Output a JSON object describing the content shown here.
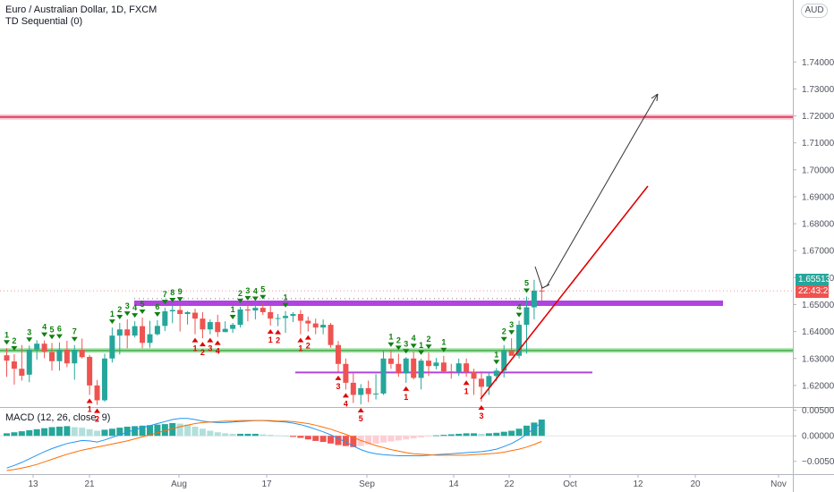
{
  "header": {
    "symbol_line": "Euro / Australian Dollar, 1D, FXCM",
    "indicator_line": "TD Sequential (0)",
    "currency_button": "AUD"
  },
  "macd": {
    "label": "MACD (12, 26, close, 9)"
  },
  "price_badges": {
    "last_price": "1.65513",
    "countdown": "22:43:26"
  },
  "colors": {
    "up": "#26a69a",
    "down": "#ef5350",
    "resistance_line": "#e04060",
    "support_band": "#4caf50",
    "purple_band": "#b044e0",
    "trend_line": "#e00000",
    "arrow_line": "#333333",
    "td_buy": "#e00000",
    "td_sell": "#108010"
  },
  "chart_data": [
    {
      "type": "candlestick",
      "title": "Euro / Australian Dollar, 1D, FXCM",
      "ylim": [
        1.612,
        1.763
      ],
      "y_ticks": [
        1.62,
        1.63,
        1.64,
        1.65,
        1.66,
        1.67,
        1.68,
        1.69,
        1.7,
        1.71,
        1.72,
        1.73,
        1.74
      ],
      "x_ticks": [
        "13",
        "21",
        "Aug",
        "17",
        "Sep",
        "14",
        "22",
        "Oct",
        "12",
        "20",
        "Nov"
      ],
      "candles": [
        {
          "o": 1.6312,
          "h": 1.6338,
          "l": 1.6232,
          "c": 1.6292
        },
        {
          "o": 1.6289,
          "h": 1.6316,
          "l": 1.6203,
          "c": 1.6262
        },
        {
          "o": 1.6262,
          "h": 1.635,
          "l": 1.6218,
          "c": 1.6236
        },
        {
          "o": 1.624,
          "h": 1.6348,
          "l": 1.6212,
          "c": 1.6333
        },
        {
          "o": 1.6333,
          "h": 1.6368,
          "l": 1.6296,
          "c": 1.6355
        },
        {
          "o": 1.6355,
          "h": 1.6367,
          "l": 1.6301,
          "c": 1.6325
        },
        {
          "o": 1.6324,
          "h": 1.6358,
          "l": 1.6255,
          "c": 1.629
        },
        {
          "o": 1.629,
          "h": 1.636,
          "l": 1.6255,
          "c": 1.6333
        },
        {
          "o": 1.6333,
          "h": 1.6366,
          "l": 1.6268,
          "c": 1.6282
        },
        {
          "o": 1.6282,
          "h": 1.635,
          "l": 1.6221,
          "c": 1.6332
        },
        {
          "o": 1.6332,
          "h": 1.6374,
          "l": 1.63,
          "c": 1.6305
        },
        {
          "o": 1.6306,
          "h": 1.6313,
          "l": 1.6165,
          "c": 1.62
        },
        {
          "o": 1.62,
          "h": 1.622,
          "l": 1.6128,
          "c": 1.6145
        },
        {
          "o": 1.6145,
          "h": 1.6318,
          "l": 1.614,
          "c": 1.63
        },
        {
          "o": 1.63,
          "h": 1.6415,
          "l": 1.6285,
          "c": 1.6385
        },
        {
          "o": 1.6385,
          "h": 1.6432,
          "l": 1.6315,
          "c": 1.6408
        },
        {
          "o": 1.6408,
          "h": 1.6445,
          "l": 1.6338,
          "c": 1.6385
        },
        {
          "o": 1.6385,
          "h": 1.6438,
          "l": 1.6378,
          "c": 1.642
        },
        {
          "o": 1.642,
          "h": 1.6452,
          "l": 1.6338,
          "c": 1.6358
        },
        {
          "o": 1.6358,
          "h": 1.644,
          "l": 1.634,
          "c": 1.639
        },
        {
          "o": 1.639,
          "h": 1.6442,
          "l": 1.6385,
          "c": 1.6421
        },
        {
          "o": 1.6421,
          "h": 1.6488,
          "l": 1.6402,
          "c": 1.6475
        },
        {
          "o": 1.6475,
          "h": 1.6495,
          "l": 1.6431,
          "c": 1.648
        },
        {
          "o": 1.648,
          "h": 1.6498,
          "l": 1.64,
          "c": 1.6465
        },
        {
          "o": 1.6465,
          "h": 1.6476,
          "l": 1.6426,
          "c": 1.6472
        },
        {
          "o": 1.647,
          "h": 1.6485,
          "l": 1.639,
          "c": 1.6448
        },
        {
          "o": 1.6448,
          "h": 1.6472,
          "l": 1.6375,
          "c": 1.6408
        },
        {
          "o": 1.6408,
          "h": 1.6445,
          "l": 1.639,
          "c": 1.6435
        },
        {
          "o": 1.6435,
          "h": 1.6462,
          "l": 1.638,
          "c": 1.6398
        },
        {
          "o": 1.6398,
          "h": 1.6438,
          "l": 1.6398,
          "c": 1.641
        },
        {
          "o": 1.641,
          "h": 1.6432,
          "l": 1.6395,
          "c": 1.6425
        },
        {
          "o": 1.6425,
          "h": 1.6492,
          "l": 1.6415,
          "c": 1.6482
        },
        {
          "o": 1.6482,
          "h": 1.6502,
          "l": 1.6438,
          "c": 1.6478
        },
        {
          "o": 1.6478,
          "h": 1.65,
          "l": 1.6445,
          "c": 1.6488
        },
        {
          "o": 1.6488,
          "h": 1.6506,
          "l": 1.6462,
          "c": 1.6472
        },
        {
          "o": 1.6472,
          "h": 1.6495,
          "l": 1.6422,
          "c": 1.6448
        },
        {
          "o": 1.6448,
          "h": 1.6465,
          "l": 1.642,
          "c": 1.645
        },
        {
          "o": 1.645,
          "h": 1.6476,
          "l": 1.6395,
          "c": 1.6458
        },
        {
          "o": 1.6458,
          "h": 1.6472,
          "l": 1.6435,
          "c": 1.6465
        },
        {
          "o": 1.6465,
          "h": 1.648,
          "l": 1.639,
          "c": 1.644
        },
        {
          "o": 1.644,
          "h": 1.6455,
          "l": 1.64,
          "c": 1.643
        },
        {
          "o": 1.643,
          "h": 1.6448,
          "l": 1.639,
          "c": 1.6415
        },
        {
          "o": 1.6415,
          "h": 1.6445,
          "l": 1.639,
          "c": 1.6425
        },
        {
          "o": 1.6425,
          "h": 1.6432,
          "l": 1.634,
          "c": 1.635
        },
        {
          "o": 1.635,
          "h": 1.6365,
          "l": 1.625,
          "c": 1.628
        },
        {
          "o": 1.628,
          "h": 1.63,
          "l": 1.6185,
          "c": 1.621
        },
        {
          "o": 1.621,
          "h": 1.6245,
          "l": 1.6135,
          "c": 1.6165
        },
        {
          "o": 1.6165,
          "h": 1.6205,
          "l": 1.613,
          "c": 1.619
        },
        {
          "o": 1.619,
          "h": 1.6218,
          "l": 1.6138,
          "c": 1.6168
        },
        {
          "o": 1.6168,
          "h": 1.6242,
          "l": 1.6148,
          "c": 1.617
        },
        {
          "o": 1.617,
          "h": 1.6328,
          "l": 1.6165,
          "c": 1.63
        },
        {
          "o": 1.63,
          "h": 1.633,
          "l": 1.6262,
          "c": 1.628
        },
        {
          "o": 1.628,
          "h": 1.6318,
          "l": 1.6232,
          "c": 1.6245
        },
        {
          "o": 1.6245,
          "h": 1.6305,
          "l": 1.621,
          "c": 1.63
        },
        {
          "o": 1.63,
          "h": 1.6325,
          "l": 1.6222,
          "c": 1.6228
        },
        {
          "o": 1.6228,
          "h": 1.63,
          "l": 1.6185,
          "c": 1.6292
        },
        {
          "o": 1.6292,
          "h": 1.6322,
          "l": 1.6235,
          "c": 1.6272
        },
        {
          "o": 1.6272,
          "h": 1.6302,
          "l": 1.626,
          "c": 1.6285
        },
        {
          "o": 1.6285,
          "h": 1.631,
          "l": 1.6245,
          "c": 1.6252
        },
        {
          "o": 1.6252,
          "h": 1.628,
          "l": 1.6225,
          "c": 1.625
        },
        {
          "o": 1.625,
          "h": 1.63,
          "l": 1.6235,
          "c": 1.6282
        },
        {
          "o": 1.6282,
          "h": 1.63,
          "l": 1.6232,
          "c": 1.625
        },
        {
          "o": 1.625,
          "h": 1.6262,
          "l": 1.6165,
          "c": 1.6225
        },
        {
          "o": 1.6225,
          "h": 1.6252,
          "l": 1.614,
          "c": 1.6195
        },
        {
          "o": 1.6195,
          "h": 1.6248,
          "l": 1.6165,
          "c": 1.6235
        },
        {
          "o": 1.6235,
          "h": 1.6265,
          "l": 1.6215,
          "c": 1.6255
        },
        {
          "o": 1.6255,
          "h": 1.635,
          "l": 1.623,
          "c": 1.633
        },
        {
          "o": 1.633,
          "h": 1.6375,
          "l": 1.6312,
          "c": 1.631
        },
        {
          "o": 1.631,
          "h": 1.644,
          "l": 1.63,
          "c": 1.6425
        },
        {
          "o": 1.6425,
          "h": 1.653,
          "l": 1.6318,
          "c": 1.649
        },
        {
          "o": 1.649,
          "h": 1.6592,
          "l": 1.6445,
          "c": 1.6552
        },
        {
          "o": 1.6552,
          "h": 1.657,
          "l": 1.6515,
          "c": 1.6551
        }
      ],
      "levels": [
        {
          "name": "resistance",
          "y": 1.7196
        },
        {
          "name": "support-band",
          "y": 1.633
        },
        {
          "name": "purple-band-upper",
          "y": 1.6505
        },
        {
          "name": "purple-band-lower",
          "y": 1.6248
        },
        {
          "name": "dotted-line",
          "y": 1.6522
        }
      ],
      "td_sequential": {
        "sell_counts": [
          {
            "bar": 0,
            "label": "1"
          },
          {
            "bar": 1,
            "label": "2"
          },
          {
            "bar": 3,
            "label": "3"
          },
          {
            "bar": 5,
            "label": "4"
          },
          {
            "bar": 6,
            "label": "5"
          },
          {
            "bar": 7,
            "label": "6"
          },
          {
            "bar": 9,
            "label": "7"
          },
          {
            "bar": 14,
            "label": "1"
          },
          {
            "bar": 15,
            "label": "2"
          },
          {
            "bar": 16,
            "label": "3"
          },
          {
            "bar": 17,
            "label": "4"
          },
          {
            "bar": 18,
            "label": "5"
          },
          {
            "bar": 20,
            "label": "6"
          },
          {
            "bar": 21,
            "label": "7"
          },
          {
            "bar": 22,
            "label": "8"
          },
          {
            "bar": 23,
            "label": "9"
          },
          {
            "bar": 30,
            "label": "1"
          },
          {
            "bar": 31,
            "label": "2"
          },
          {
            "bar": 32,
            "label": "3"
          },
          {
            "bar": 33,
            "label": "4"
          },
          {
            "bar": 34,
            "label": "5"
          },
          {
            "bar": 37,
            "label": "1"
          },
          {
            "bar": 51,
            "label": "1"
          },
          {
            "bar": 52,
            "label": "2"
          },
          {
            "bar": 53,
            "label": "3"
          },
          {
            "bar": 54,
            "label": "4"
          },
          {
            "bar": 55,
            "label": "1"
          },
          {
            "bar": 56,
            "label": "2"
          },
          {
            "bar": 58,
            "label": "1"
          },
          {
            "bar": 65,
            "label": "1"
          },
          {
            "bar": 66,
            "label": "2"
          },
          {
            "bar": 67,
            "label": "3"
          },
          {
            "bar": 68,
            "label": "4"
          },
          {
            "bar": 69,
            "label": "5"
          }
        ],
        "buy_counts": [
          {
            "bar": 11,
            "label": "1"
          },
          {
            "bar": 12,
            "label": "2"
          },
          {
            "bar": 25,
            "label": "1"
          },
          {
            "bar": 26,
            "label": "2"
          },
          {
            "bar": 27,
            "label": "3"
          },
          {
            "bar": 28,
            "label": "4"
          },
          {
            "bar": 35,
            "label": "1"
          },
          {
            "bar": 36,
            "label": "2"
          },
          {
            "bar": 39,
            "label": "1"
          },
          {
            "bar": 40,
            "label": "2"
          },
          {
            "bar": 44,
            "label": "3"
          },
          {
            "bar": 45,
            "label": "4"
          },
          {
            "bar": 47,
            "label": "5"
          },
          {
            "bar": 53,
            "label": "1"
          },
          {
            "bar": 61,
            "label": "1"
          },
          {
            "bar": 63,
            "label": "3"
          }
        ]
      }
    },
    {
      "type": "bar",
      "title": "MACD (12, 26, close, 9)",
      "ylim": [
        -0.0075,
        0.0053
      ],
      "y_ticks": [
        0.005,
        0.0,
        -0.005
      ],
      "histogram": [
        0.0005,
        0.0007,
        0.0009,
        0.0011,
        0.0013,
        0.0015,
        0.0017,
        0.0018,
        0.0019,
        0.0017,
        0.0016,
        0.0013,
        0.001,
        0.0012,
        0.0014,
        0.0016,
        0.0018,
        0.0019,
        0.002,
        0.0021,
        0.0022,
        0.0023,
        0.0025,
        0.0024,
        0.0022,
        0.0018,
        0.0014,
        0.001,
        0.0007,
        0.0005,
        0.0004,
        0.0004,
        0.0004,
        0.0004,
        0.0003,
        0.0002,
        0.0001,
        0.0,
        -0.0002,
        -0.0004,
        -0.0007,
        -0.001,
        -0.0012,
        -0.0015,
        -0.0018,
        -0.002,
        -0.0022,
        -0.002,
        -0.0017,
        -0.0015,
        -0.0013,
        -0.0011,
        -0.0009,
        -0.0007,
        -0.0005,
        -0.0003,
        -0.0001,
        0.0001,
        0.0002,
        0.0003,
        0.0004,
        0.0005,
        0.0005,
        0.0004,
        0.0005,
        0.0006,
        0.0008,
        0.001,
        0.0014,
        0.002,
        0.0026,
        0.0032
      ],
      "macd_line": [
        -0.0063,
        -0.0058,
        -0.0052,
        -0.0045,
        -0.0038,
        -0.0031,
        -0.0025,
        -0.002,
        -0.0015,
        -0.0012,
        -0.0009,
        -0.001,
        -0.0012,
        -0.0008,
        -0.0003,
        0.0002,
        0.0007,
        0.0012,
        0.0016,
        0.002,
        0.0024,
        0.0028,
        0.0032,
        0.0034,
        0.0034,
        0.0032,
        0.0029,
        0.0027,
        0.0026,
        0.0026,
        0.0027,
        0.0028,
        0.0029,
        0.003,
        0.003,
        0.0029,
        0.0028,
        0.0027,
        0.0025,
        0.0022,
        0.0018,
        0.0013,
        0.0008,
        0.0002,
        -0.0005,
        -0.0012,
        -0.002,
        -0.0027,
        -0.0032,
        -0.0035,
        -0.0037,
        -0.0038,
        -0.0039,
        -0.0039,
        -0.0039,
        -0.0039,
        -0.0038,
        -0.0037,
        -0.0036,
        -0.0035,
        -0.0034,
        -0.0033,
        -0.0032,
        -0.0031,
        -0.0029,
        -0.0026,
        -0.0021,
        -0.0015,
        -0.0007,
        0.0003,
        0.0015,
        0.0026
      ],
      "signal_line": [
        -0.0068,
        -0.0066,
        -0.0063,
        -0.006,
        -0.0056,
        -0.0051,
        -0.0046,
        -0.0041,
        -0.0036,
        -0.0032,
        -0.0028,
        -0.0025,
        -0.0022,
        -0.0019,
        -0.0016,
        -0.0013,
        -0.001,
        -0.0006,
        -0.0002,
        0.0002,
        0.0006,
        0.001,
        0.0014,
        0.0018,
        0.0021,
        0.0024,
        0.0026,
        0.0027,
        0.0028,
        0.0029,
        0.0029,
        0.003,
        0.003,
        0.003,
        0.003,
        0.003,
        0.0029,
        0.0029,
        0.0028,
        0.0026,
        0.0024,
        0.0021,
        0.0017,
        0.0013,
        0.0008,
        0.0003,
        -0.0003,
        -0.0009,
        -0.0014,
        -0.0019,
        -0.0023,
        -0.0027,
        -0.003,
        -0.0033,
        -0.0035,
        -0.0036,
        -0.0037,
        -0.0038,
        -0.0038,
        -0.0038,
        -0.0038,
        -0.0038,
        -0.0037,
        -0.0036,
        -0.0035,
        -0.0034,
        -0.0032,
        -0.0029,
        -0.0026,
        -0.0022,
        -0.0017,
        -0.0011
      ]
    }
  ]
}
